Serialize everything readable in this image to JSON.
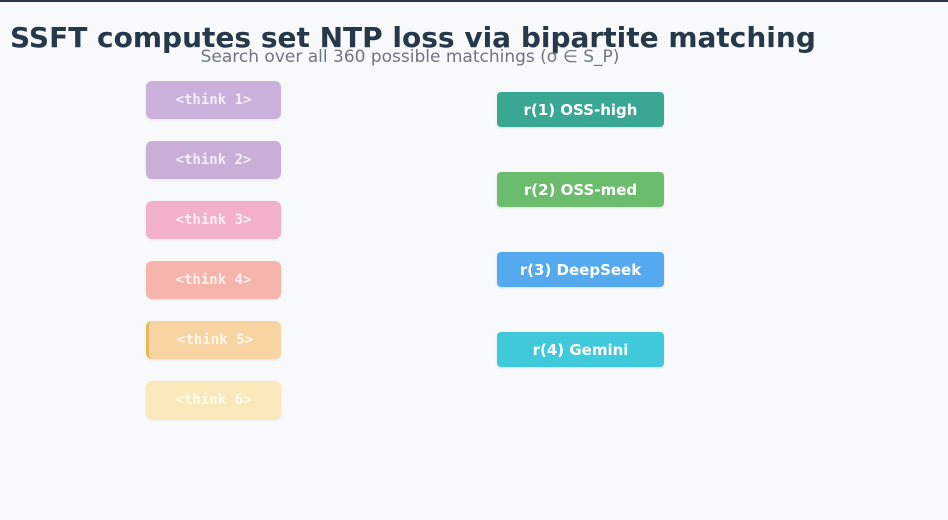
{
  "header": {
    "title": "SSFT computes set NTP loss via bipartite matching",
    "subtitle": "Search over all 360 possible matchings (σ ∈ S_P)"
  },
  "think_column": {
    "items": [
      {
        "label": "<think 1>",
        "color": "#c9b1dc",
        "highlighted": false
      },
      {
        "label": "<think 2>",
        "color": "#c9aed8",
        "highlighted": false
      },
      {
        "label": "<think 3>",
        "color": "#f2b1c9",
        "highlighted": false
      },
      {
        "label": "<think 4>",
        "color": "#f6b5ac",
        "highlighted": false
      },
      {
        "label": "<think 5>",
        "color": "#f8d4a2",
        "highlighted": true
      },
      {
        "label": "<think 6>",
        "color": "#f9e9ba",
        "highlighted": false
      }
    ],
    "text_color": "rgba(255,255,255,0.78)",
    "layout": {
      "top_start": 81,
      "spacing": 60
    }
  },
  "rank_column": {
    "items": [
      {
        "label": "r(1) OSS-high",
        "color": "#3aa795"
      },
      {
        "label": "r(2) OSS-med",
        "color": "#6cbc6d"
      },
      {
        "label": "r(3) DeepSeek",
        "color": "#55a9ef"
      },
      {
        "label": "r(4) Gemini",
        "color": "#3fc9db"
      }
    ],
    "text_color": "#ffffff",
    "layout": {
      "top_start": 92,
      "spacing": 80
    }
  },
  "theme": {
    "background": "#f8f9fa",
    "title_color": "#263849",
    "subtitle_color": "#6e7681",
    "top_border_color": "#263849",
    "highlight_border_color": "#eab758"
  }
}
